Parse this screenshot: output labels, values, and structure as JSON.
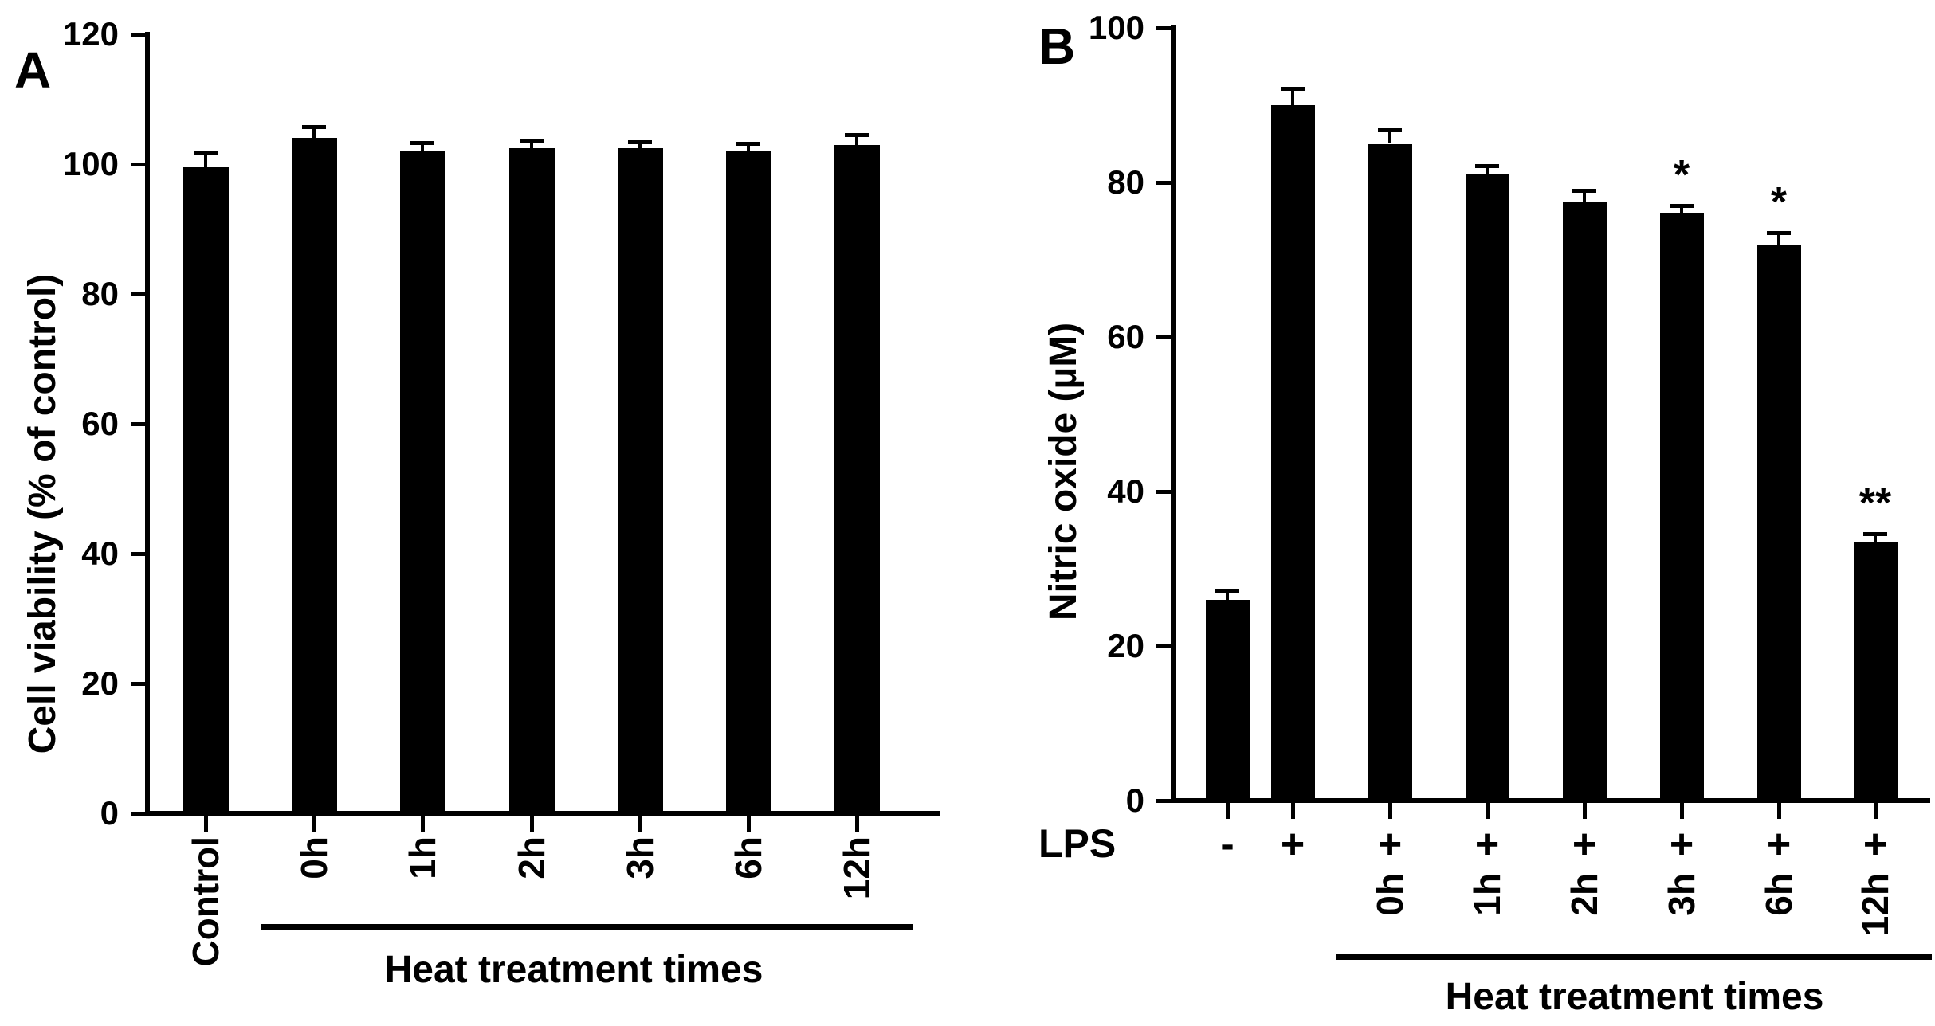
{
  "figure": {
    "background": "#ffffff",
    "bar_color": "#000000",
    "axis_color": "#000000",
    "text_color": "#000000"
  },
  "chart_data": [
    {
      "type": "bar",
      "panel_label": "A",
      "title": "",
      "xlabel": "",
      "ylabel": "Cell viability (% of control)",
      "ylim": [
        0,
        120
      ],
      "yticks": [
        0,
        20,
        40,
        60,
        80,
        100,
        120
      ],
      "categories": [
        "Control",
        "0h",
        "1h",
        "2h",
        "3h",
        "6h",
        "12h"
      ],
      "values": [
        99.5,
        104,
        102,
        102.5,
        102.5,
        102,
        103
      ],
      "errors": [
        2.3,
        1.8,
        1.3,
        1.2,
        0.9,
        1.2,
        1.5
      ],
      "significance": [
        "",
        "",
        "",
        "",
        "",
        "",
        ""
      ],
      "group_label": "Heat treatment times",
      "group_members": [
        "0h",
        "1h",
        "2h",
        "3h",
        "6h",
        "12h"
      ],
      "legend": "none",
      "grid": false
    },
    {
      "type": "bar",
      "panel_label": "B",
      "title": "",
      "xlabel": "",
      "ylabel": "Nitric oxide (µM)",
      "ylim": [
        0,
        100
      ],
      "yticks": [
        0,
        20,
        40,
        60,
        80,
        100
      ],
      "row_label": "LPS",
      "lps_values": [
        "-",
        "+",
        "+",
        "+",
        "+",
        "+",
        "+",
        "+"
      ],
      "categories": [
        "LPS -",
        "LPS +",
        "0h",
        "1h",
        "2h",
        "3h",
        "6h",
        "12h"
      ],
      "time_labels": [
        "",
        "",
        "0h",
        "1h",
        "2h",
        "3h",
        "6h",
        "12h"
      ],
      "values": [
        26,
        90,
        85,
        81,
        77.5,
        76,
        72,
        33.5
      ],
      "errors": [
        1.2,
        2.2,
        1.8,
        1.2,
        1.5,
        1.0,
        1.5,
        1.0
      ],
      "significance": [
        "",
        "",
        "",
        "",
        "",
        "*",
        "*",
        "**"
      ],
      "group_label": "Heat treatment times",
      "group_members": [
        "0h",
        "1h",
        "2h",
        "3h",
        "6h",
        "12h"
      ],
      "legend": "none",
      "grid": false
    }
  ]
}
